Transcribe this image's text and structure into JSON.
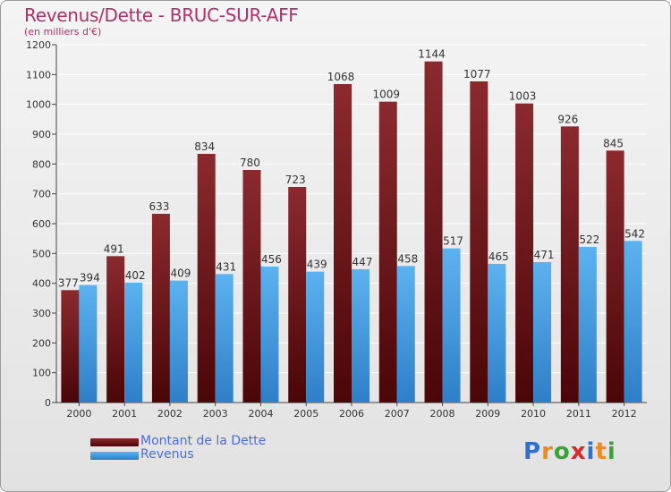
{
  "chart_data": {
    "type": "bar",
    "title": "Revenus/Dette - BRUC-SUR-AFF",
    "subtitle": "(en milliers d'€)",
    "xlabel": "",
    "ylabel": "",
    "ylim": [
      0,
      1200
    ],
    "yticks": [
      0,
      100,
      200,
      300,
      400,
      500,
      600,
      700,
      800,
      900,
      1000,
      1100,
      1200
    ],
    "grid": true,
    "legend_position": "bottom-left",
    "categories": [
      "2000",
      "2001",
      "2002",
      "2003",
      "2004",
      "2005",
      "2006",
      "2007",
      "2008",
      "2009",
      "2010",
      "2011",
      "2012"
    ],
    "series": [
      {
        "name": "Montant de la Dette",
        "color": "#7a1f24",
        "values": [
          377,
          491,
          633,
          834,
          780,
          723,
          1068,
          1009,
          1144,
          1077,
          1003,
          926,
          845
        ]
      },
      {
        "name": "Revenus",
        "color": "#4aa3e6",
        "values": [
          394,
          402,
          409,
          431,
          456,
          439,
          447,
          458,
          517,
          465,
          471,
          522,
          542
        ]
      }
    ]
  },
  "legend": {
    "debt_label": "Montant de la Dette",
    "revenue_label": "Revenus"
  },
  "logo": {
    "letters": [
      "P",
      "r",
      "o",
      "x",
      "i",
      "t",
      "i"
    ],
    "colors": [
      "#2f6fd0",
      "#f08a1c",
      "#3aa23a",
      "#d82a2a",
      "#2f6fd0",
      "#f08a1c",
      "#3aa23a"
    ]
  },
  "colors": {
    "title": "#b0306a",
    "legend_text": "#4a6ed8",
    "debt_top": "#8b2a2e",
    "debt_bottom": "#4a0608",
    "revenue_top": "#5cb2ef",
    "revenue_bottom": "#2f7fc8"
  }
}
